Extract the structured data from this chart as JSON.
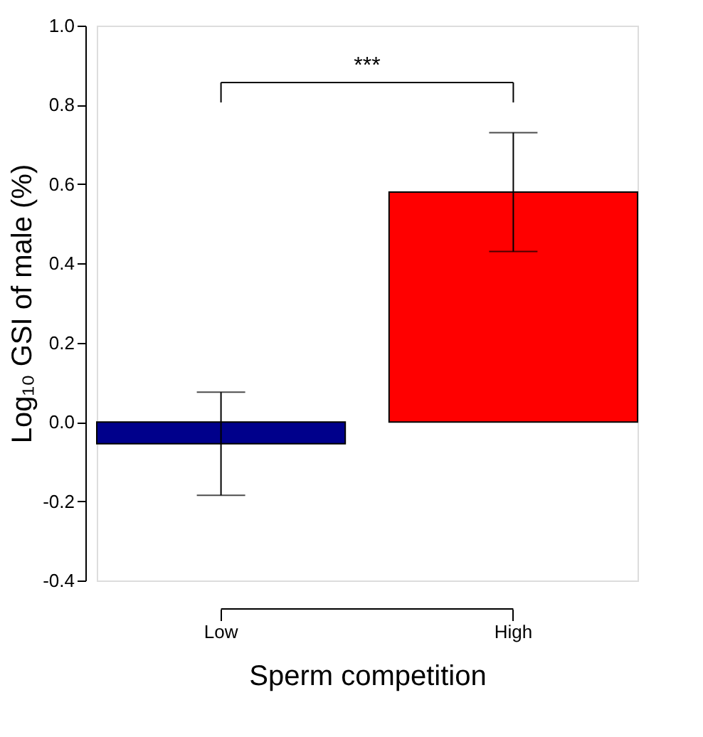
{
  "chart_data": {
    "type": "bar",
    "xlabel": "Sperm competition",
    "ylabel": "Log₁₀ GSI of male (%)",
    "categories": [
      "Low",
      "High"
    ],
    "values": [
      -0.055,
      0.58
    ],
    "colors": [
      "#00008b",
      "#ff0000"
    ],
    "errors": [
      0.13,
      0.15
    ],
    "ylim": [
      -0.4,
      1.0
    ],
    "yticks": [
      -0.4,
      -0.2,
      {
        "value": 0,
        "label": "0.0"
      },
      0.2,
      0.4,
      0.6,
      0.8,
      {
        "value": 1,
        "label": "1.0"
      }
    ],
    "annotations": [
      "***"
    ],
    "grid": false
  }
}
